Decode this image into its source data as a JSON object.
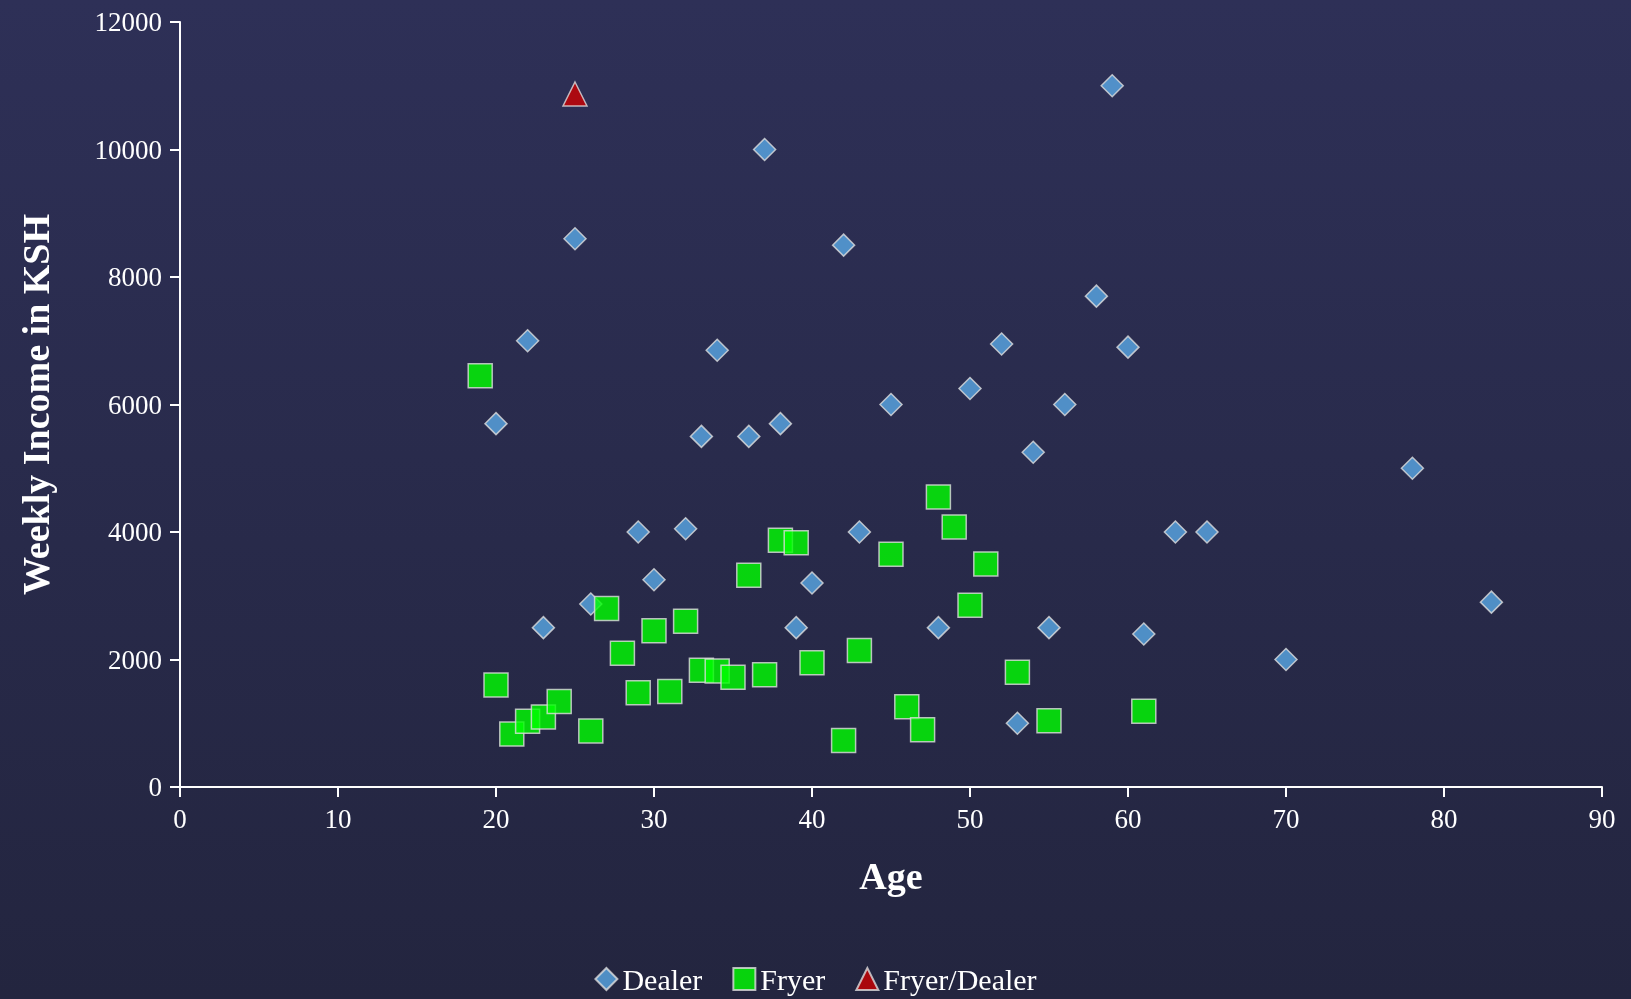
{
  "chart_data": {
    "type": "scatter",
    "xlabel": "Age",
    "ylabel": "Weekly Income in KSH",
    "xlim": [
      0,
      90
    ],
    "xticks": [
      0,
      10,
      20,
      30,
      40,
      50,
      60,
      70,
      80,
      90
    ],
    "ylim": [
      0,
      12000
    ],
    "yticks": [
      0,
      2000,
      4000,
      6000,
      8000,
      10000,
      12000
    ],
    "grid": false,
    "legend": "bottom",
    "series": [
      {
        "name": "Dealer",
        "color": "#5aa9e6",
        "marker": "diamond",
        "x": [
          25,
          22,
          20,
          23,
          26,
          29,
          30,
          32,
          33,
          34,
          36,
          37,
          38,
          39,
          40,
          42,
          43,
          45,
          48,
          50,
          52,
          53,
          54,
          55,
          56,
          58,
          59,
          60,
          61,
          63,
          65,
          70,
          78,
          83
        ],
        "values": [
          8600,
          7000,
          5700,
          2500,
          2870,
          4000,
          3250,
          4050,
          5500,
          6850,
          5500,
          10000,
          5700,
          2500,
          3200,
          8500,
          4000,
          6000,
          2500,
          6250,
          6950,
          1000,
          5250,
          2500,
          6000,
          7700,
          11000,
          6900,
          2400,
          4000,
          4000,
          2000,
          5000,
          2900
        ]
      },
      {
        "name": "Fryer",
        "color": "#00ff00",
        "marker": "square",
        "x": [
          19,
          20,
          21,
          22,
          23,
          24,
          26,
          27,
          28,
          29,
          30,
          31,
          32,
          33,
          34,
          35,
          36,
          37,
          38,
          39,
          40,
          42,
          43,
          45,
          46,
          47,
          48,
          49,
          50,
          51,
          53,
          55,
          61
        ],
        "values": [
          6450,
          1600,
          830,
          1030,
          1100,
          1340,
          880,
          2800,
          2100,
          1480,
          2450,
          1500,
          2600,
          1830,
          1820,
          1720,
          3320,
          1760,
          3870,
          3830,
          1950,
          730,
          2140,
          3650,
          1260,
          900,
          4550,
          4080,
          2850,
          3500,
          1800,
          1040,
          1190
        ]
      },
      {
        "name": "Fryer/Dealer",
        "color": "#cc0000",
        "marker": "triangle",
        "x": [
          25
        ],
        "values": [
          10870
        ]
      }
    ]
  }
}
